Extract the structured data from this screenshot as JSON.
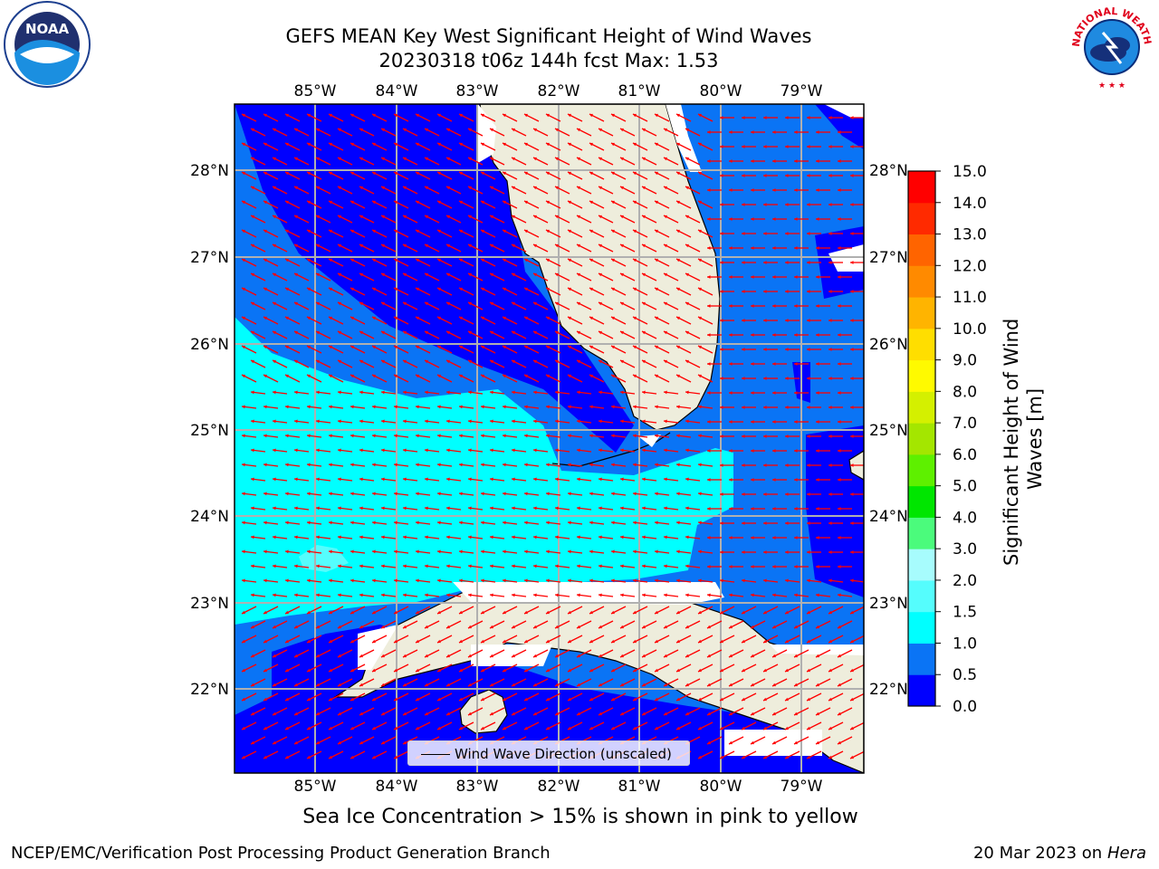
{
  "header": {
    "title_line1": "GEFS MEAN Key West Significant Height of Wind Waves",
    "title_line2": "20230318 t06z 144h fcst   Max: 1.53",
    "logo_left_text": "NOAA",
    "logo_right_text": "NATIONAL WEATHER SERVICE"
  },
  "map": {
    "lon_labels": [
      "85°W",
      "84°W",
      "83°W",
      "82°W",
      "81°W",
      "80°W",
      "79°W"
    ],
    "lat_labels": [
      "28°N",
      "27°N",
      "26°N",
      "25°N",
      "24°N",
      "23°N",
      "22°N"
    ],
    "legend_label": "Wind Wave Direction (unscaled)",
    "colors": {
      "land": "#eeeddc",
      "ocean_0": "#0000ff",
      "ocean_05": "#0a74f5",
      "ocean_10": "#00ffff",
      "ocean_15": "#55fdfd",
      "arrows": "#ff0000",
      "grid": "#b0b0b0"
    }
  },
  "colorbar": {
    "label": "Significant Height of Wind Waves [m]",
    "ticks": [
      "0.0",
      "0.5",
      "1.0",
      "1.5",
      "2.0",
      "3.0",
      "4.0",
      "5.0",
      "6.0",
      "7.0",
      "8.0",
      "9.0",
      "10.0",
      "11.0",
      "12.0",
      "13.0",
      "14.0",
      "15.0"
    ],
    "colors": [
      "#0000ff",
      "#0a74f5",
      "#00ffff",
      "#55fdfd",
      "#a7fcfd",
      "#4bfb7c",
      "#00e600",
      "#5ef000",
      "#a4e600",
      "#d4f000",
      "#fffa00",
      "#ffde00",
      "#ffb400",
      "#ff8a00",
      "#ff6400",
      "#ff2a00",
      "#ff0000"
    ]
  },
  "footer": {
    "note": "Sea Ice Concentration > 15% is shown in pink to yellow",
    "left": "NCEP/EMC/Verification Post Processing Product Generation Branch",
    "right_prefix": "20 Mar 2023 on",
    "right_machine": "Hera"
  }
}
